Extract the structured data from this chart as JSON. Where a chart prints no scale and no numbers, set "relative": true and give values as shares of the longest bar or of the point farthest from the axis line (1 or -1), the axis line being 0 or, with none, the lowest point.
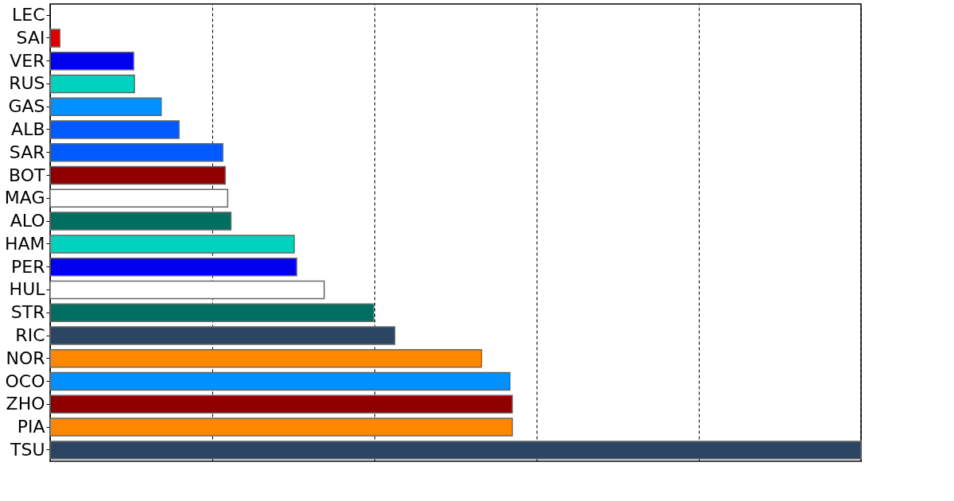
{
  "chart_data": {
    "type": "bar",
    "orientation": "horizontal",
    "relative": true,
    "grid": "x",
    "tick_labels": "y",
    "categories": [
      "LEC",
      "SAI",
      "VER",
      "RUS",
      "GAS",
      "ALB",
      "SAR",
      "BOT",
      "MAG",
      "ALO",
      "HAM",
      "PER",
      "HUL",
      "STR",
      "RIC",
      "NOR",
      "OCO",
      "ZHO",
      "PIA",
      "TSU"
    ],
    "values": [
      0,
      0.012,
      0.103,
      0.104,
      0.137,
      0.159,
      0.213,
      0.216,
      0.219,
      0.223,
      0.301,
      0.304,
      0.338,
      0.399,
      0.425,
      0.532,
      0.567,
      0.57,
      0.57,
      1
    ],
    "colors": [
      "#dc0000",
      "#dc0000",
      "#0000ee",
      "#00d2be",
      "#0090ff",
      "#005aff",
      "#005aff",
      "#900000",
      "#ffffff",
      "#006f62",
      "#00d2be",
      "#0000ee",
      "#ffffff",
      "#006f62",
      "#2b4562",
      "#ff8700",
      "#0090ff",
      "#900000",
      "#ff8700",
      "#2b4562"
    ]
  }
}
